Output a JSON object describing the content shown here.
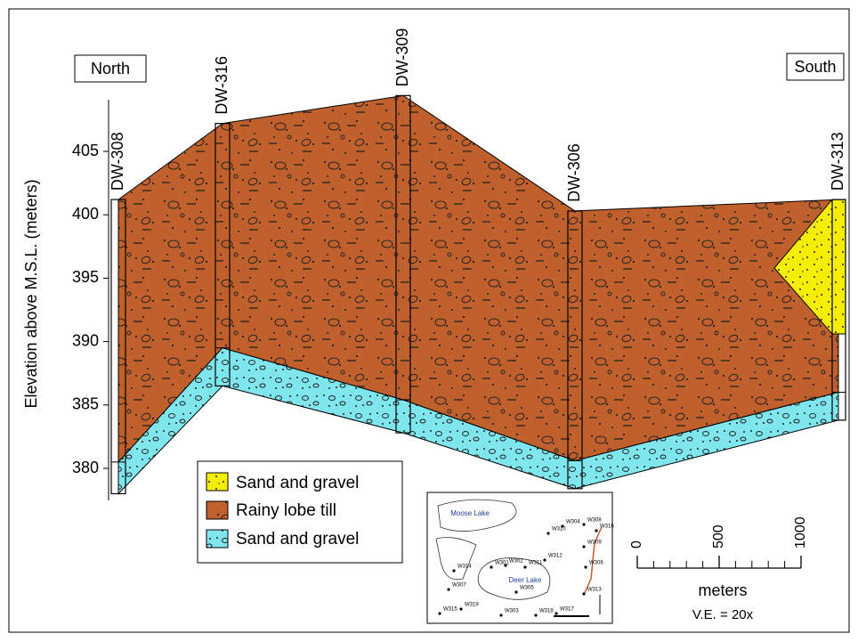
{
  "labels": {
    "north": "North",
    "south": "South"
  },
  "y_axis": {
    "label": "Elevation above M.S.L. (meters)",
    "ticks": [
      380,
      385,
      390,
      395,
      400,
      405
    ]
  },
  "wells": [
    {
      "name": "DW-308",
      "top": 401.2,
      "sand_top": 380.5,
      "bottom": 378
    },
    {
      "name": "DW-316",
      "top": 407.2,
      "sand_top": 389.5,
      "bottom": 386.5
    },
    {
      "name": "DW-309",
      "top": 409.4,
      "sand_top": 385.4,
      "bottom": 382.8
    },
    {
      "name": "DW-306",
      "top": 400.3,
      "sand_top": 380.6,
      "bottom": 378.4
    },
    {
      "name": "DW-313",
      "top": 401.2,
      "sand_top": 386,
      "bottom": 383.8
    }
  ],
  "yellow_lens": {
    "top": 401.2,
    "tip": 395.8,
    "bottom": 390.6
  },
  "legend": {
    "items": [
      "Sand and gravel",
      "Rainy lobe till",
      "Sand and gravel"
    ]
  },
  "map": {
    "lakes": [
      "Moose Lake",
      "Deer Lake"
    ],
    "wells": [
      "W304",
      "W308",
      "W310",
      "W316",
      "W309",
      "W312",
      "W301",
      "W302",
      "W311",
      "W306",
      "W314",
      "W307",
      "W313",
      "W305",
      "W315",
      "W319",
      "W303",
      "W318",
      "W317"
    ]
  },
  "scale": {
    "ticks": [
      0,
      500,
      1000
    ],
    "unit": "meters",
    "ve": "V.E. = 20x"
  }
}
